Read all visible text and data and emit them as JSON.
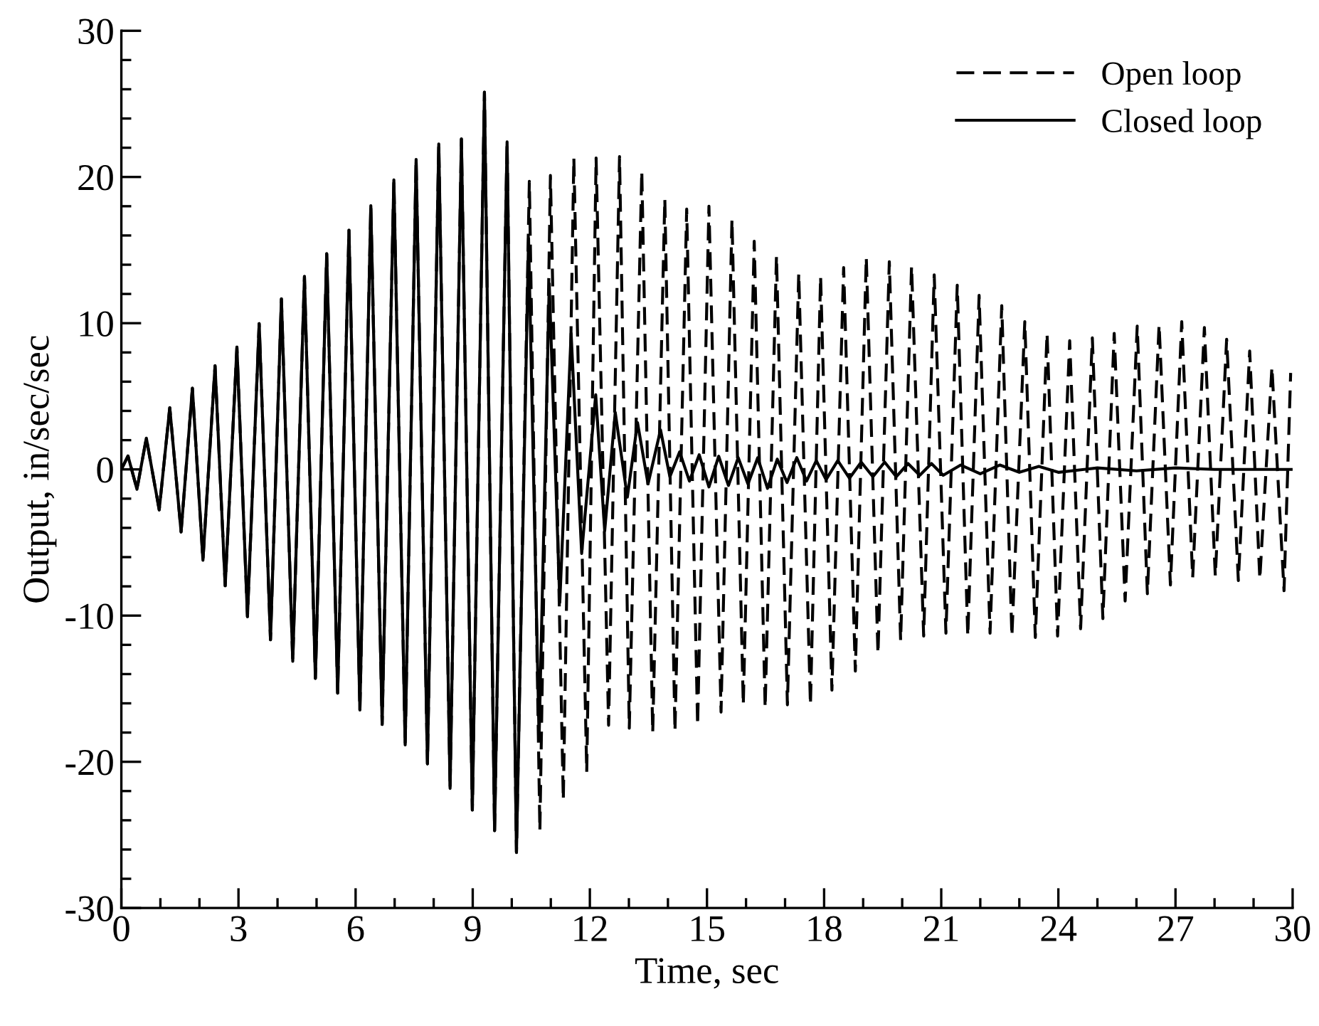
{
  "chart_data": {
    "type": "line",
    "xlabel": "Time, sec",
    "ylabel": "Output, in/sec/sec",
    "xlim": [
      0,
      30
    ],
    "ylim": [
      -30,
      30
    ],
    "xticks": [
      0,
      {
        "value": 1,
        "label": null
      },
      {
        "value": 2,
        "label": null
      },
      3,
      {
        "value": 4,
        "label": null
      },
      {
        "value": 5,
        "label": null
      },
      6,
      {
        "value": 7,
        "label": null
      },
      {
        "value": 8,
        "label": null
      },
      9,
      {
        "value": 10,
        "label": null
      },
      {
        "value": 11,
        "label": null
      },
      12,
      {
        "value": 13,
        "label": null
      },
      {
        "value": 14,
        "label": null
      },
      15,
      {
        "value": 16,
        "label": null
      },
      {
        "value": 17,
        "label": null
      },
      18,
      {
        "value": 19,
        "label": null
      },
      {
        "value": 20,
        "label": null
      },
      21,
      {
        "value": 22,
        "label": null
      },
      {
        "value": 23,
        "label": null
      },
      24,
      {
        "value": 25,
        "label": null
      },
      {
        "value": 26,
        "label": null
      },
      27,
      {
        "value": 28,
        "label": null
      },
      {
        "value": 29,
        "label": null
      },
      30
    ],
    "yticks": [
      -30,
      {
        "value": -28,
        "label": null
      },
      {
        "value": -26,
        "label": null
      },
      {
        "value": -24,
        "label": null
      },
      {
        "value": -22,
        "label": null
      },
      -20,
      {
        "value": -18,
        "label": null
      },
      {
        "value": -16,
        "label": null
      },
      {
        "value": -14,
        "label": null
      },
      {
        "value": -12,
        "label": null
      },
      -10,
      {
        "value": -8,
        "label": null
      },
      {
        "value": -6,
        "label": null
      },
      {
        "value": -4,
        "label": null
      },
      {
        "value": -2,
        "label": null
      },
      0,
      {
        "value": 2,
        "label": null
      },
      {
        "value": 4,
        "label": null
      },
      {
        "value": 6,
        "label": null
      },
      {
        "value": 8,
        "label": null
      },
      10,
      {
        "value": 12,
        "label": null
      },
      {
        "value": 14,
        "label": null
      },
      {
        "value": 16,
        "label": null
      },
      {
        "value": 18,
        "label": null
      },
      20,
      {
        "value": 22,
        "label": null
      },
      {
        "value": 24,
        "label": null
      },
      {
        "value": 26,
        "label": null
      },
      {
        "value": 28,
        "label": null
      },
      30
    ],
    "grid": false,
    "legend": "top right",
    "series": [
      {
        "name": "Open loop",
        "color": "#000000",
        "line_style": "dashed",
        "x": [
          0,
          0.17,
          0.4,
          0.64,
          0.97,
          1.24,
          1.53,
          1.82,
          2.09,
          2.4,
          2.66,
          2.96,
          3.23,
          3.53,
          3.82,
          4.1,
          4.39,
          4.69,
          4.97,
          5.26,
          5.54,
          5.83,
          6.11,
          6.39,
          6.68,
          6.98,
          7.27,
          7.55,
          7.84,
          8.13,
          8.42,
          8.71,
          8.99,
          9.3,
          9.56,
          9.88,
          10.12,
          10.45,
          10.72,
          10.99,
          11.32,
          11.59,
          11.92,
          12.16,
          12.48,
          12.76,
          13.01,
          13.33,
          13.61,
          13.92,
          14.18,
          14.48,
          14.76,
          15.05,
          15.36,
          15.64,
          15.93,
          16.21,
          16.49,
          16.78,
          17.06,
          17.35,
          17.65,
          17.91,
          18.2,
          18.5,
          18.8,
          19.08,
          19.38,
          19.67,
          19.96,
          20.24,
          20.55,
          20.82,
          21.12,
          21.41,
          21.68,
          21.97,
          22.25,
          22.55,
          22.81,
          23.14,
          23.41,
          23.71,
          23.98,
          24.29,
          24.57,
          24.87,
          25.14,
          25.43,
          25.71,
          26.02,
          26.28,
          26.58,
          26.87,
          27.16,
          27.44,
          27.74,
          28.02,
          28.31,
          28.61,
          28.9,
          29.16,
          29.47,
          29.78,
          29.95
        ],
        "values": [
          0,
          0.92,
          -1.36,
          2.14,
          -2.77,
          4.22,
          -4.28,
          5.55,
          -6.21,
          7.09,
          -7.96,
          8.36,
          -10.07,
          9.97,
          -11.65,
          11.66,
          -13.13,
          13.2,
          -14.29,
          14.75,
          -15.3,
          16.36,
          -16.46,
          18.04,
          -17.44,
          19.8,
          -18.84,
          21.2,
          -20.14,
          22.26,
          -21.82,
          22.6,
          -23.3,
          25.8,
          -24.71,
          22.4,
          -26.2,
          19.7,
          -24.7,
          20.1,
          -22.6,
          21.3,
          -20.7,
          21.3,
          -17.5,
          21.4,
          -17.7,
          20.4,
          -18.0,
          18.5,
          -17.9,
          17.8,
          -17.5,
          18.0,
          -16.6,
          17.1,
          -16.1,
          15.6,
          -16.3,
          14.6,
          -16.1,
          13.4,
          -16.1,
          13.2,
          -15.1,
          13.8,
          -13.8,
          14.5,
          -12.6,
          14.2,
          -11.7,
          13.9,
          -11.4,
          13.3,
          -11.2,
          12.6,
          -11.4,
          11.9,
          -11.2,
          11.2,
          -11.4,
          10.1,
          -11.5,
          9.3,
          -11.4,
          8.8,
          -10.9,
          9.0,
          -10.2,
          9.3,
          -9.0,
          9.8,
          -8.5,
          9.9,
          -7.9,
          10.1,
          -7.4,
          9.7,
          -7.3,
          8.9,
          -7.6,
          8.1,
          -7.5,
          7.0,
          -8.3,
          6.6
        ]
      },
      {
        "name": "Closed loop",
        "color": "#000000",
        "line_style": "solid",
        "x": [
          0,
          0.17,
          0.4,
          0.64,
          0.97,
          1.24,
          1.53,
          1.82,
          2.09,
          2.4,
          2.66,
          2.96,
          3.23,
          3.53,
          3.82,
          4.1,
          4.39,
          4.69,
          4.97,
          5.26,
          5.54,
          5.83,
          6.11,
          6.39,
          6.68,
          6.98,
          7.27,
          7.55,
          7.84,
          8.13,
          8.42,
          8.71,
          8.99,
          9.3,
          9.56,
          9.88,
          10.12,
          10.43,
          10.7,
          10.96,
          11.23,
          11.52,
          11.79,
          12.15,
          12.38,
          12.65,
          12.96,
          13.22,
          13.49,
          13.81,
          14.05,
          14.3,
          14.55,
          14.8,
          15.05,
          15.3,
          15.55,
          15.8,
          16.05,
          16.3,
          16.55,
          16.8,
          17.05,
          17.3,
          17.55,
          17.8,
          18.05,
          18.35,
          18.65,
          18.95,
          19.25,
          19.55,
          19.85,
          20.15,
          20.45,
          20.75,
          21.05,
          21.5,
          22.0,
          22.5,
          23.0,
          23.5,
          24.0,
          25.0,
          26.0,
          27.0,
          28.0,
          30.0
        ],
        "values": [
          0,
          0.92,
          -1.36,
          2.14,
          -2.77,
          4.22,
          -4.28,
          5.55,
          -6.21,
          7.09,
          -7.96,
          8.36,
          -10.07,
          9.97,
          -11.65,
          11.66,
          -13.13,
          13.2,
          -14.29,
          14.75,
          -15.3,
          16.36,
          -16.46,
          18.04,
          -17.44,
          19.8,
          -18.84,
          21.2,
          -20.14,
          22.26,
          -21.82,
          22.6,
          -23.3,
          25.8,
          -24.71,
          22.4,
          -26.2,
          15.8,
          -18.4,
          12.7,
          -9.1,
          9.3,
          -5.75,
          5.1,
          -4.2,
          3.9,
          -1.9,
          3.2,
          -1.0,
          2.7,
          -0.5,
          1.2,
          -0.8,
          1.0,
          -1.2,
          0.9,
          -1.1,
          0.8,
          -1.0,
          0.8,
          -1.3,
          0.7,
          -0.9,
          0.8,
          -0.8,
          0.6,
          -0.7,
          0.6,
          -0.6,
          0.5,
          -0.5,
          0.5,
          -0.5,
          0.4,
          -0.4,
          0.4,
          -0.4,
          0.3,
          -0.3,
          0.3,
          -0.2,
          0.2,
          -0.2,
          0.1,
          -0.1,
          0.1,
          0,
          0
        ]
      }
    ]
  }
}
